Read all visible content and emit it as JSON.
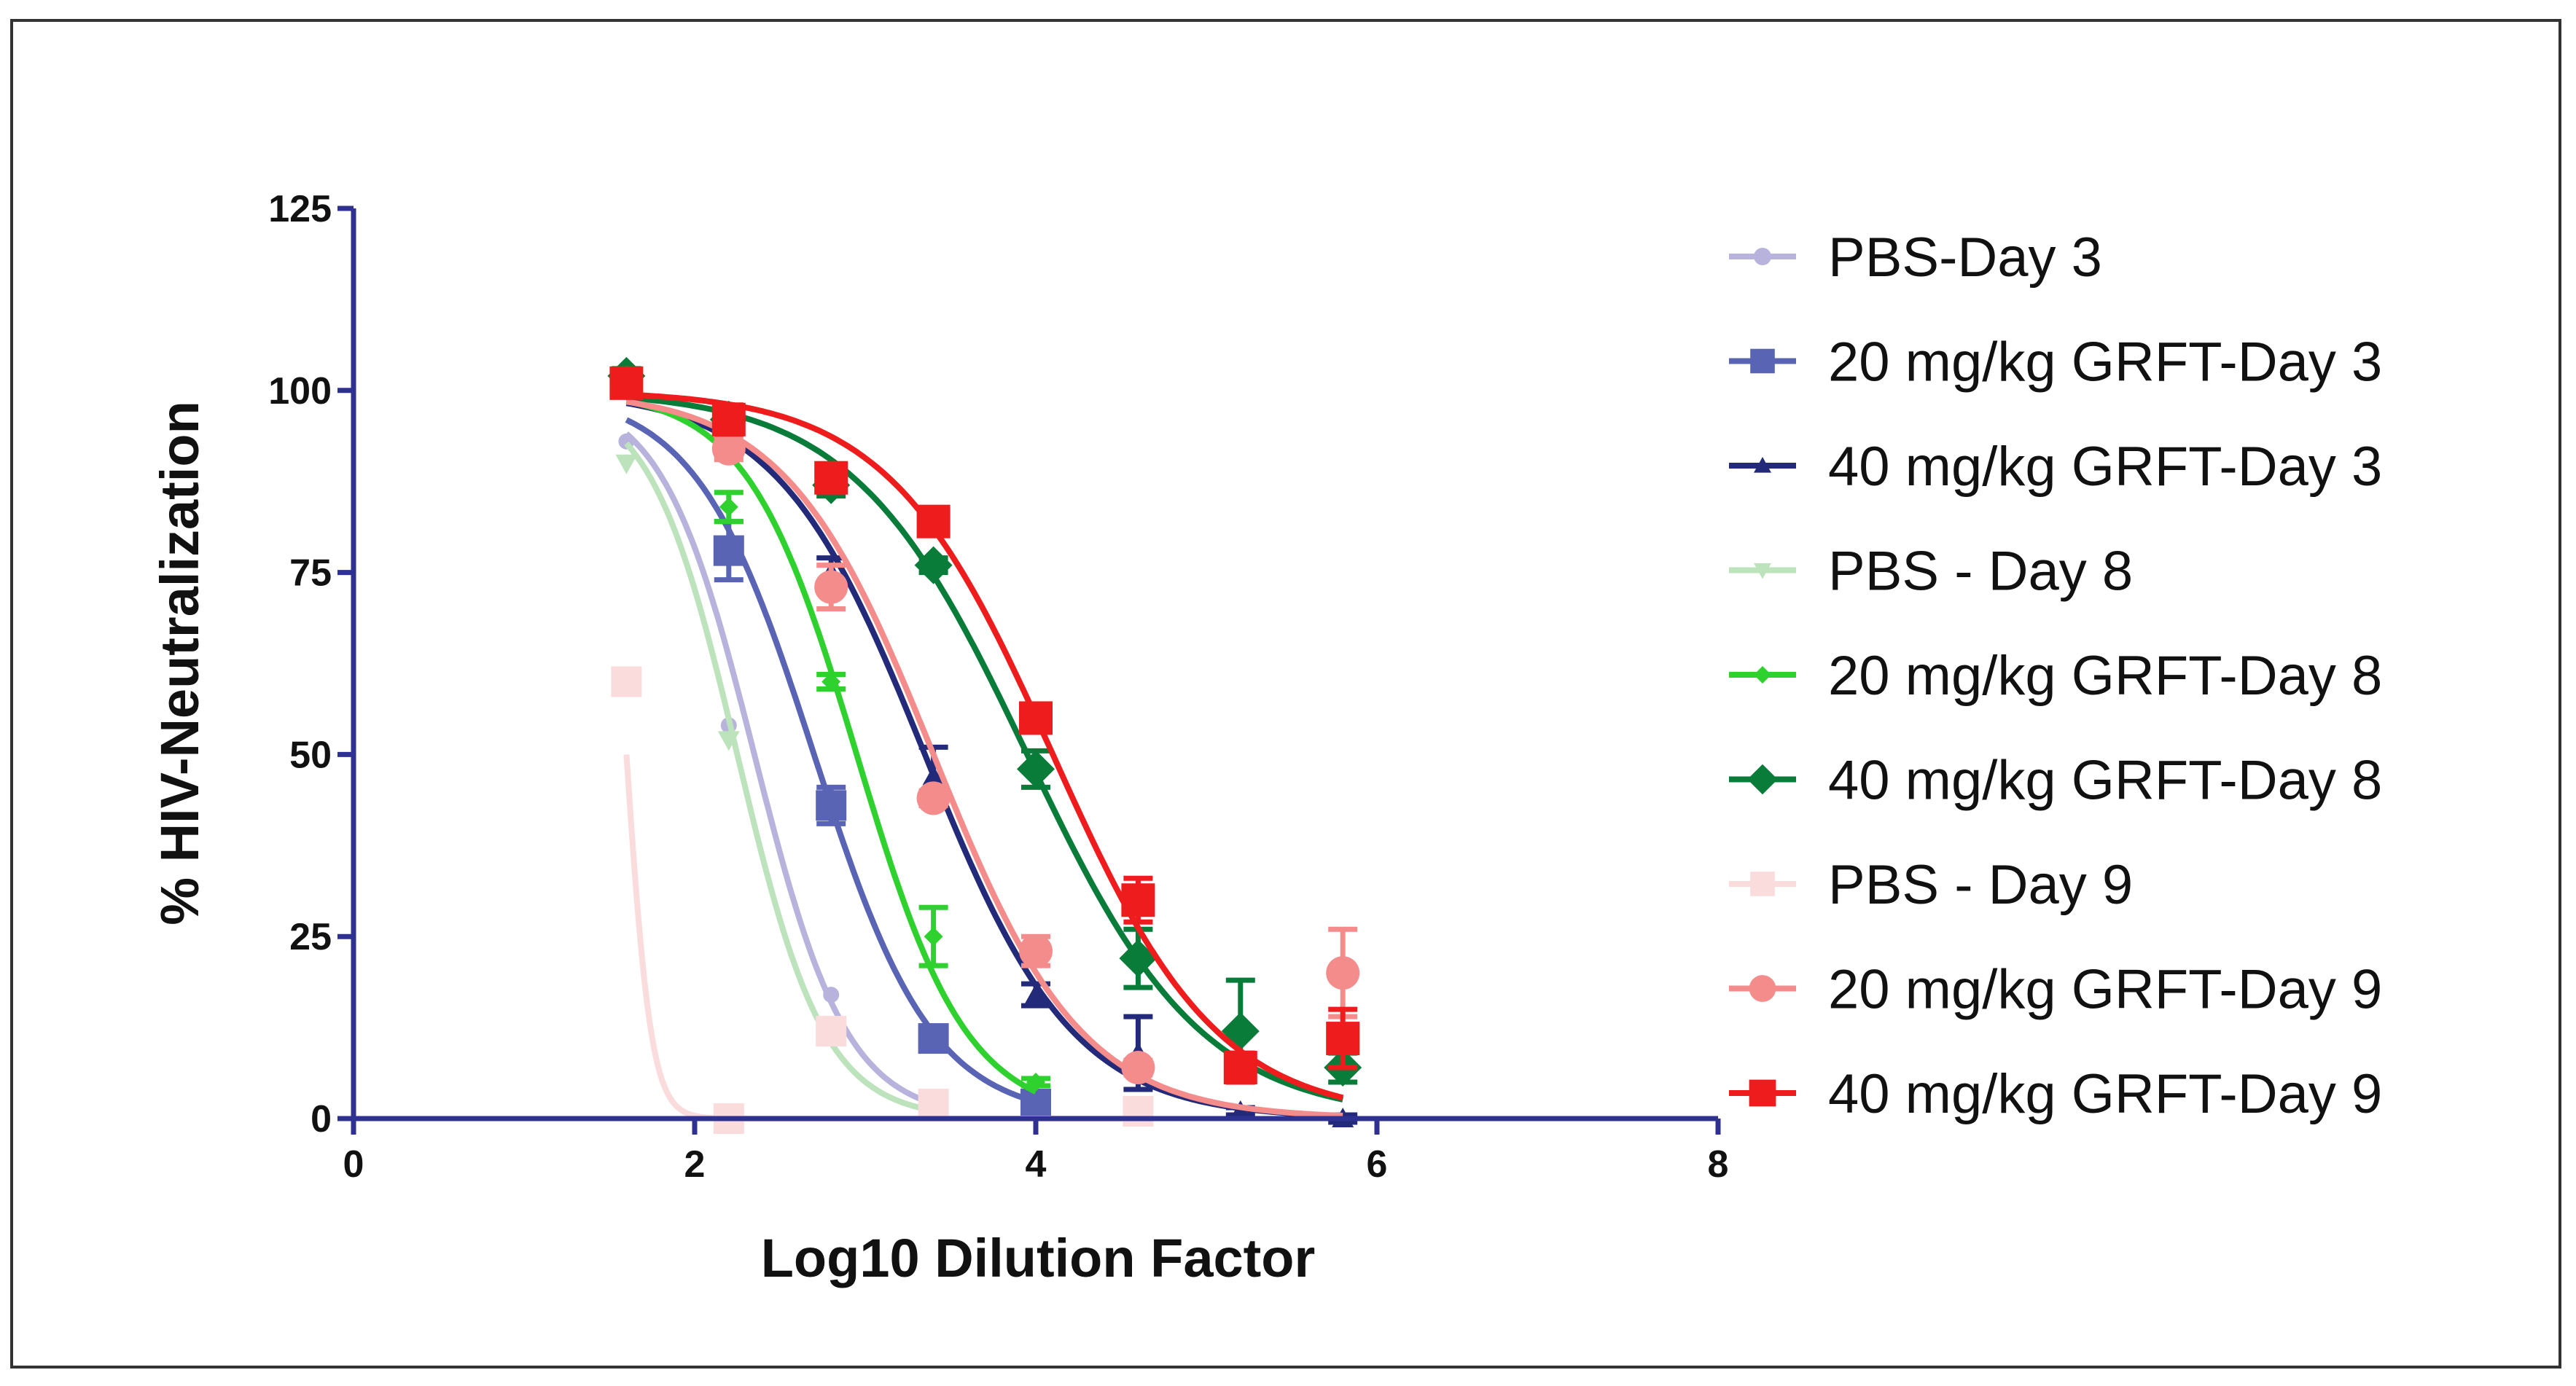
{
  "chart_data": {
    "type": "scatter",
    "title": "",
    "xlabel": "Log10 Dilution Factor",
    "ylabel": "% HIV-Neutralization",
    "xlim": [
      0,
      8
    ],
    "ylim": [
      0,
      125
    ],
    "xticks": [
      0,
      2,
      4,
      6,
      8
    ],
    "yticks": [
      0,
      25,
      50,
      75,
      100,
      125
    ],
    "legend_position": "right",
    "series": [
      {
        "name": "PBS-Day 3",
        "color": "#b7b3dd",
        "marker": "circle",
        "marker_size": 11,
        "x": [
          1.6,
          2.2,
          2.8,
          3.4
        ],
        "y": [
          93,
          54,
          17,
          11
        ],
        "err": [
          0,
          0,
          0,
          0
        ],
        "fit": {
          "top": 100,
          "bottom": 0,
          "logIC50": 2.35,
          "hill": 1.6
        }
      },
      {
        "name": "20 mg/kg GRFT-Day 3",
        "color": "#5a64b4",
        "marker": "square",
        "marker_size": 21,
        "x": [
          1.6,
          2.2,
          2.8,
          3.4,
          4.0
        ],
        "y": [
          101,
          78,
          43,
          11,
          2
        ],
        "err": [
          1.5,
          4,
          2.5,
          1,
          0.5
        ],
        "fit": {
          "top": 100,
          "bottom": 0,
          "logIC50": 2.7,
          "hill": 1.25
        }
      },
      {
        "name": "40 mg/kg GRFT-Day 3",
        "color": "#232a7a",
        "marker": "triangle",
        "marker_size": 15,
        "x": [
          1.6,
          2.2,
          2.8,
          3.4,
          4.0,
          4.6,
          5.2,
          5.8
        ],
        "y": [
          101,
          93,
          75,
          47,
          17,
          9,
          1,
          0
        ],
        "err": [
          1,
          1.5,
          2,
          4,
          1.5,
          5,
          0.5,
          0.5
        ],
        "fit": {
          "top": 100,
          "bottom": 0,
          "logIC50": 3.35,
          "hill": 1.0
        }
      },
      {
        "name": "PBS - Day 8",
        "color": "#bde3bd",
        "marker": "triangle-down",
        "marker_size": 15,
        "x": [
          1.6,
          2.2,
          2.8,
          3.4
        ],
        "y": [
          90,
          52,
          12,
          2
        ],
        "err": [
          0,
          0,
          0,
          0
        ],
        "fit": {
          "top": 100,
          "bottom": 0,
          "logIC50": 2.25,
          "hill": 1.7
        }
      },
      {
        "name": "20 mg/kg GRFT-Day 8",
        "color": "#2ed12e",
        "marker": "diamond",
        "marker_size": 13,
        "x": [
          1.6,
          2.2,
          2.8,
          3.4,
          4.0
        ],
        "y": [
          101,
          84,
          60,
          25,
          5
        ],
        "err": [
          1,
          2,
          1,
          4,
          0.5
        ],
        "fit": {
          "top": 100,
          "bottom": 0,
          "logIC50": 2.95,
          "hill": 1.35
        }
      },
      {
        "name": "40 mg/kg GRFT-Day 8",
        "color": "#0a7c3a",
        "marker": "diamond",
        "marker_size": 26,
        "x": [
          1.6,
          2.2,
          2.8,
          3.4,
          4.0,
          4.6,
          5.2,
          5.8
        ],
        "y": [
          102,
          96,
          87,
          76,
          48,
          22,
          12,
          7
        ],
        "err": [
          1,
          1,
          1.5,
          1,
          2.5,
          4,
          7,
          2
        ],
        "fit": {
          "top": 100,
          "bottom": 0,
          "logIC50": 3.95,
          "hill": 0.85
        }
      },
      {
        "name": "PBS - Day 9",
        "color": "#fadcdc",
        "marker": "square",
        "marker_size": 21,
        "x": [
          1.6,
          2.2,
          2.8,
          3.4,
          4.6
        ],
        "y": [
          60,
          0,
          12,
          2,
          1
        ],
        "err": [
          0,
          0,
          0,
          0,
          0
        ],
        "fit": {
          "top": 100,
          "bottom": 0,
          "logIC50": 1.6,
          "hill": 6
        }
      },
      {
        "name": "20 mg/kg GRFT-Day 9",
        "color": "#f58c8c",
        "marker": "circle",
        "marker_size": 23,
        "x": [
          1.6,
          2.2,
          2.8,
          3.4,
          4.0,
          4.6,
          5.8
        ],
        "y": [
          101,
          92,
          73,
          44,
          23,
          7,
          20
        ],
        "err": [
          1,
          1.5,
          3,
          1,
          2,
          1,
          6
        ],
        "fit": {
          "top": 100,
          "bottom": 0,
          "logIC50": 3.4,
          "hill": 1.0
        }
      },
      {
        "name": "40 mg/kg GRFT-Day 9",
        "color": "#ee1c1c",
        "marker": "square",
        "marker_size": 23,
        "x": [
          1.6,
          2.2,
          2.8,
          3.4,
          4.0,
          4.6,
          5.2,
          5.8
        ],
        "y": [
          101,
          96,
          88,
          82,
          55,
          30,
          7,
          11
        ],
        "err": [
          1,
          2,
          1.5,
          1,
          1.5,
          3,
          2,
          4
        ],
        "fit": {
          "top": 100,
          "bottom": 0,
          "logIC50": 4.1,
          "hill": 0.9
        }
      }
    ]
  }
}
